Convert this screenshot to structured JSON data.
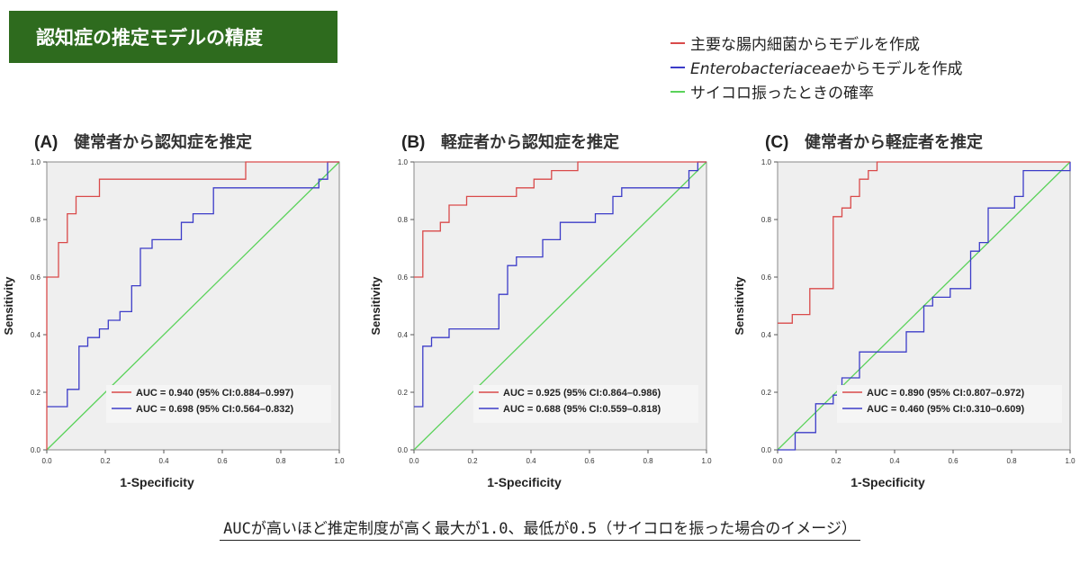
{
  "header": {
    "title": "認知症の推定モデルの精度"
  },
  "legend": {
    "items": [
      {
        "label": "主要な腸内細菌からモデルを作成",
        "label_italic": "",
        "color": "#d94a4a"
      },
      {
        "label": "からモデルを作成",
        "label_italic": "Enterobacteriaceae",
        "color": "#3c3cc8"
      },
      {
        "label": "サイコロ振ったときの確率",
        "label_italic": "",
        "color": "#5ad25a"
      }
    ]
  },
  "caption": "AUCが高いほど推定制度が高く最大が1.0、最低が0.5（サイコロを振った場合のイメージ）",
  "chart_data": [
    {
      "type": "line",
      "panel_label": "(A)",
      "title": "健常者から認知症を推定",
      "xlabel": "1-Specificity",
      "ylabel": "Sensitivity",
      "xlim": [
        0,
        1
      ],
      "ylim": [
        0,
        1
      ],
      "xticks": [
        "0.0",
        "0.2",
        "0.4",
        "0.6",
        "0.8",
        "1.0"
      ],
      "yticks": [
        "0.0",
        "0.2",
        "0.4",
        "0.6",
        "0.8",
        "1.0"
      ],
      "series": [
        {
          "color": "#d94a4a",
          "auc_label": "AUC = 0.940 (95% CI:0.884–0.997)",
          "x": [
            0,
            0,
            0.04,
            0.04,
            0.07,
            0.07,
            0.1,
            0.1,
            0.18,
            0.18,
            0.68,
            0.68,
            1.0
          ],
          "y": [
            0,
            0.6,
            0.6,
            0.72,
            0.72,
            0.82,
            0.82,
            0.88,
            0.88,
            0.94,
            0.94,
            1.0,
            1.0
          ]
        },
        {
          "color": "#3c3cc8",
          "auc_label": "AUC = 0.698 (95% CI:0.564–0.832)",
          "x": [
            0,
            0.07,
            0.07,
            0.11,
            0.11,
            0.14,
            0.14,
            0.18,
            0.18,
            0.21,
            0.21,
            0.25,
            0.25,
            0.29,
            0.29,
            0.32,
            0.32,
            0.36,
            0.36,
            0.46,
            0.46,
            0.5,
            0.5,
            0.57,
            0.57,
            0.93,
            0.93,
            0.96,
            0.96,
            1.0
          ],
          "y": [
            0.15,
            0.15,
            0.21,
            0.21,
            0.36,
            0.36,
            0.39,
            0.39,
            0.42,
            0.42,
            0.45,
            0.45,
            0.48,
            0.48,
            0.57,
            0.57,
            0.7,
            0.7,
            0.73,
            0.73,
            0.79,
            0.79,
            0.82,
            0.82,
            0.91,
            0.91,
            0.94,
            0.94,
            1.0,
            1.0
          ]
        },
        {
          "color": "#5ad25a",
          "auc_label": "",
          "x": [
            0,
            1
          ],
          "y": [
            0,
            1
          ]
        }
      ]
    },
    {
      "type": "line",
      "panel_label": "(B)",
      "title": "軽症者から認知症を推定",
      "xlabel": "1-Specificity",
      "ylabel": "Sensitivity",
      "xlim": [
        0,
        1
      ],
      "ylim": [
        0,
        1
      ],
      "xticks": [
        "0.0",
        "0.2",
        "0.4",
        "0.6",
        "0.8",
        "1.0"
      ],
      "yticks": [
        "0.0",
        "0.2",
        "0.4",
        "0.6",
        "0.8",
        "1.0"
      ],
      "series": [
        {
          "color": "#d94a4a",
          "auc_label": "AUC = 0.925 (95% CI:0.864–0.986)",
          "x": [
            0,
            0.03,
            0.03,
            0.09,
            0.09,
            0.12,
            0.12,
            0.18,
            0.18,
            0.35,
            0.35,
            0.41,
            0.41,
            0.47,
            0.47,
            0.56,
            0.56,
            1.0
          ],
          "y": [
            0.6,
            0.6,
            0.76,
            0.76,
            0.79,
            0.79,
            0.85,
            0.85,
            0.88,
            0.88,
            0.91,
            0.91,
            0.94,
            0.94,
            0.97,
            0.97,
            1.0,
            1.0
          ]
        },
        {
          "color": "#3c3cc8",
          "auc_label": "AUC = 0.688 (95% CI:0.559–0.818)",
          "x": [
            0,
            0.03,
            0.03,
            0.06,
            0.06,
            0.12,
            0.12,
            0.29,
            0.29,
            0.32,
            0.32,
            0.35,
            0.35,
            0.44,
            0.44,
            0.5,
            0.5,
            0.62,
            0.62,
            0.68,
            0.68,
            0.71,
            0.71,
            0.94,
            0.94,
            0.97,
            0.97,
            1.0
          ],
          "y": [
            0.15,
            0.15,
            0.36,
            0.36,
            0.39,
            0.39,
            0.42,
            0.42,
            0.54,
            0.54,
            0.64,
            0.64,
            0.67,
            0.67,
            0.73,
            0.73,
            0.79,
            0.79,
            0.82,
            0.82,
            0.88,
            0.88,
            0.91,
            0.91,
            0.97,
            0.97,
            1.0,
            1.0
          ]
        },
        {
          "color": "#5ad25a",
          "auc_label": "",
          "x": [
            0,
            1
          ],
          "y": [
            0,
            1
          ]
        }
      ]
    },
    {
      "type": "line",
      "panel_label": "(C)",
      "title": "健常者から軽症者を推定",
      "xlabel": "1-Specificity",
      "ylabel": "Sensitivity",
      "xlim": [
        0,
        1
      ],
      "ylim": [
        0,
        1
      ],
      "xticks": [
        "0.0",
        "0.2",
        "0.4",
        "0.6",
        "0.8",
        "1.0"
      ],
      "yticks": [
        "0.0",
        "0.2",
        "0.4",
        "0.6",
        "0.8",
        "1.0"
      ],
      "series": [
        {
          "color": "#d94a4a",
          "auc_label": "AUC = 0.890 (95% CI:0.807–0.972)",
          "x": [
            0,
            0.05,
            0.05,
            0.11,
            0.11,
            0.19,
            0.19,
            0.22,
            0.22,
            0.25,
            0.25,
            0.28,
            0.28,
            0.31,
            0.31,
            0.34,
            0.34,
            0.41,
            0.41,
            1.0
          ],
          "y": [
            0.44,
            0.44,
            0.47,
            0.47,
            0.56,
            0.56,
            0.81,
            0.81,
            0.84,
            0.84,
            0.88,
            0.88,
            0.94,
            0.94,
            0.97,
            0.97,
            1.0,
            1.0,
            1.0,
            1.0
          ]
        },
        {
          "color": "#3c3cc8",
          "auc_label": "AUC = 0.460 (95% CI:0.310–0.609)",
          "x": [
            0,
            0.06,
            0.06,
            0.13,
            0.13,
            0.19,
            0.19,
            0.22,
            0.22,
            0.28,
            0.28,
            0.44,
            0.44,
            0.5,
            0.5,
            0.53,
            0.53,
            0.59,
            0.59,
            0.66,
            0.66,
            0.69,
            0.69,
            0.72,
            0.72,
            0.81,
            0.81,
            0.84,
            0.84,
            0.88,
            0.88,
            1.0,
            1.0
          ],
          "y": [
            0,
            0,
            0.06,
            0.06,
            0.16,
            0.16,
            0.19,
            0.19,
            0.25,
            0.25,
            0.34,
            0.34,
            0.41,
            0.41,
            0.5,
            0.5,
            0.53,
            0.53,
            0.56,
            0.56,
            0.69,
            0.69,
            0.72,
            0.72,
            0.84,
            0.84,
            0.88,
            0.88,
            0.97,
            0.97,
            0.97,
            0.97,
            1.0
          ]
        },
        {
          "color": "#5ad25a",
          "auc_label": "",
          "x": [
            0,
            1
          ],
          "y": [
            0,
            1
          ]
        }
      ]
    }
  ]
}
